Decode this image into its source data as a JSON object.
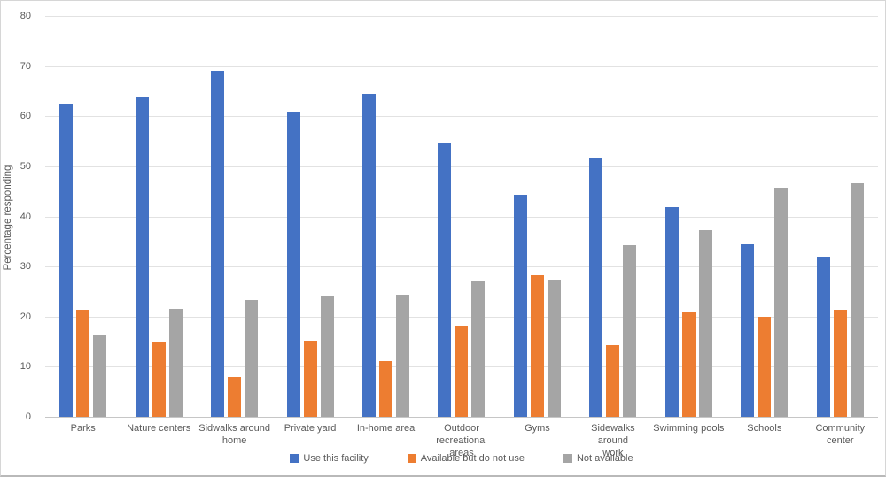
{
  "chart_data": {
    "type": "bar",
    "title": "",
    "xlabel": "",
    "ylabel": "Percentage responding",
    "ylim": [
      0,
      80
    ],
    "ytick_step": 10,
    "grid": true,
    "legend_position": "bottom",
    "categories": [
      "Parks",
      "Nature centers",
      "Sidwalks around home",
      "Private yard",
      "In-home area",
      "Outdoor recreational areas",
      "Gyms",
      "Sidewalks around work",
      "Swimming pools",
      "Schools",
      "Community center"
    ],
    "category_display": [
      "Parks",
      "Nature centers",
      "Sidwalks around\nhome",
      "Private yard",
      "In-home area",
      "Outdoor\nrecreational areas",
      "Gyms",
      "Sidewalks around\nwork",
      "Swimming pools",
      "Schools",
      "Community\ncenter"
    ],
    "series": [
      {
        "name": "Use this facility",
        "color": "#4472C4",
        "values": [
          62.4,
          63.7,
          69.0,
          60.8,
          64.5,
          54.6,
          44.3,
          51.5,
          41.8,
          34.5,
          32.0
        ]
      },
      {
        "name": "Available but do not use",
        "color": "#ED7D31",
        "values": [
          21.3,
          14.8,
          7.9,
          15.2,
          11.1,
          18.2,
          28.3,
          14.3,
          21.0,
          20.0,
          21.3
        ]
      },
      {
        "name": "Not available",
        "color": "#A5A5A5",
        "values": [
          16.4,
          21.6,
          23.3,
          24.2,
          24.4,
          27.2,
          27.4,
          34.2,
          37.2,
          45.5,
          46.7
        ]
      }
    ]
  },
  "colors": {
    "text": "#595959",
    "gridline": "#e2e2e2",
    "axis_line": "#c6c6c6",
    "frame_border": "#d6d6d6"
  }
}
